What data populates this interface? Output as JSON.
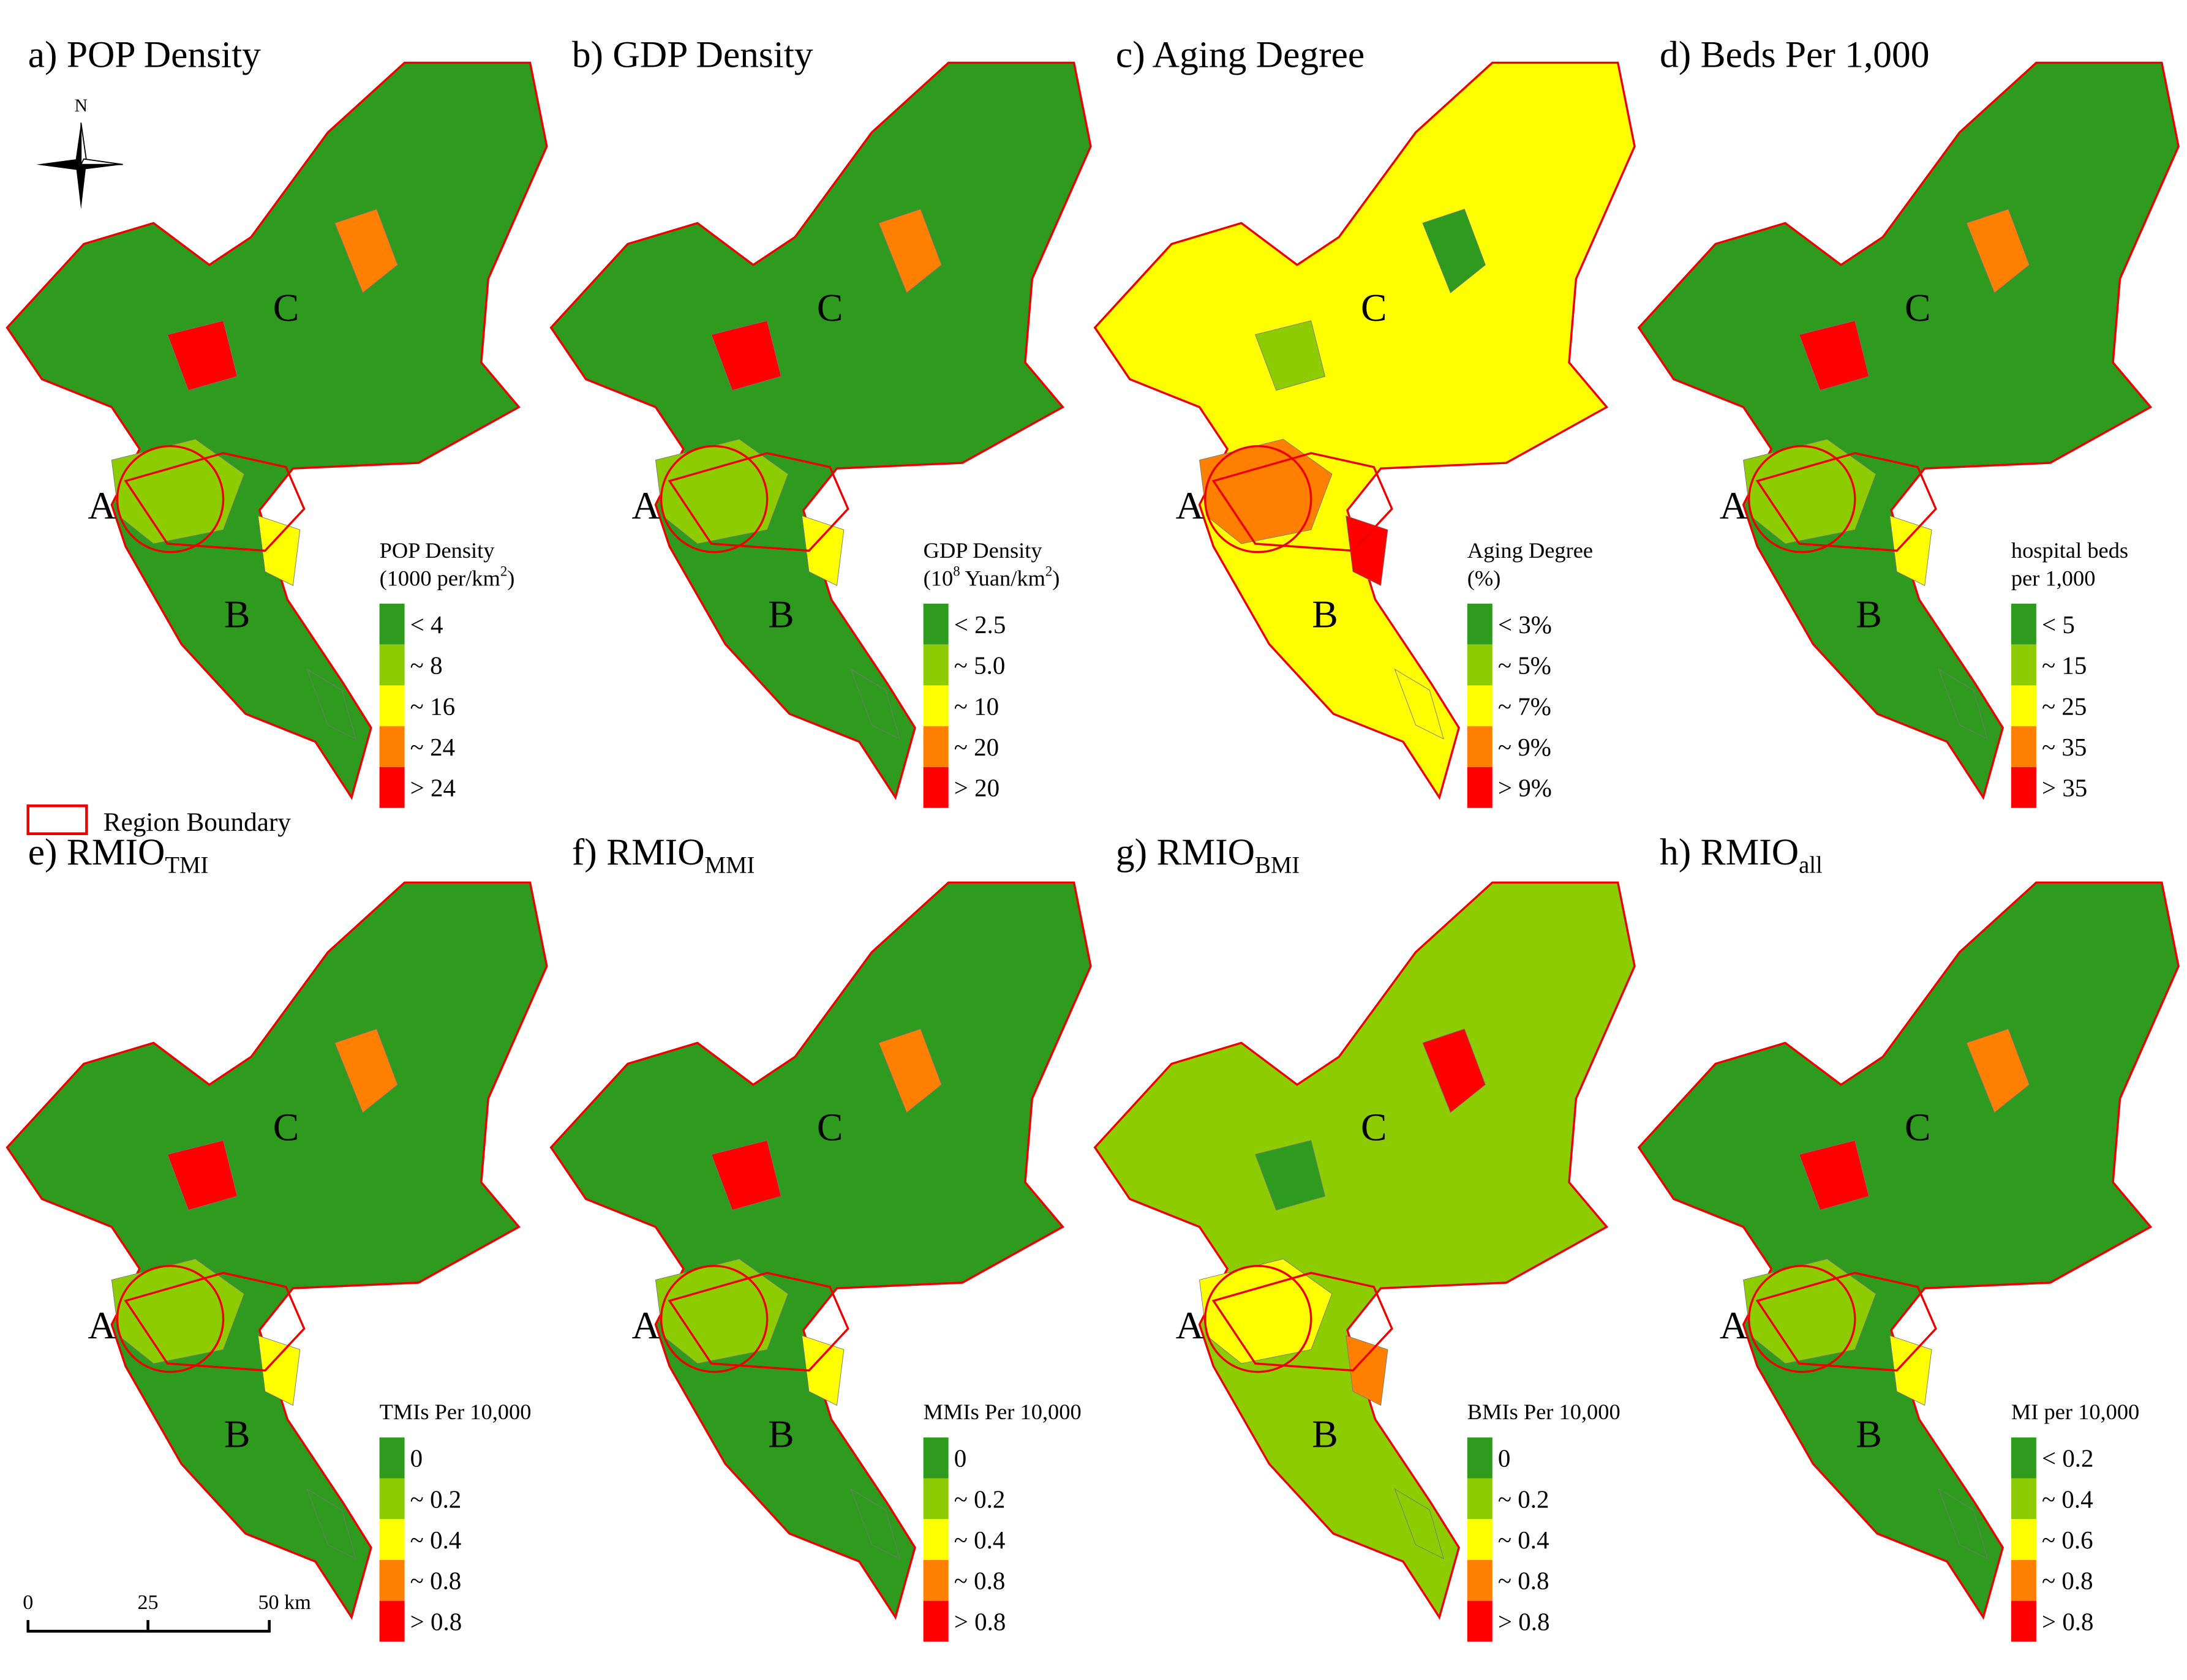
{
  "panels": [
    {
      "title": {
        "main": "a) POP Density"
      },
      "legend_title": [
        [
          {
            "t": "POP Density"
          }
        ],
        [
          {
            "t": "(1000 per/km"
          },
          {
            "t": "2",
            "sup": true
          },
          {
            "t": ")"
          }
        ]
      ],
      "legend": [
        "< 4",
        "~ 8",
        "~ 16",
        "~ 24",
        "> 24"
      ],
      "map_color": 0
    },
    {
      "title": {
        "main": "b) GDP Density"
      },
      "legend_title": [
        [
          {
            "t": "GDP Density"
          }
        ],
        [
          {
            "t": "(10"
          },
          {
            "t": "8",
            "sup": true
          },
          {
            "t": " Yuan/km"
          },
          {
            "t": "2",
            "sup": true
          },
          {
            "t": ")"
          }
        ]
      ],
      "legend": [
        "< 2.5",
        "~ 5.0",
        "~ 10",
        "~ 20",
        "> 20"
      ],
      "map_color": 0
    },
    {
      "title": {
        "main": "c) Aging Degree"
      },
      "legend_title": [
        [
          {
            "t": "Aging Degree"
          }
        ],
        [
          {
            "t": "(%)"
          }
        ]
      ],
      "legend": [
        "< 3%",
        "~ 5%",
        "~ 7%",
        "~ 9%",
        "> 9%"
      ],
      "map_color": 2
    },
    {
      "title": {
        "main": "d) Beds Per 1,000"
      },
      "legend_title": [
        [
          {
            "t": "hospital beds"
          }
        ],
        [
          {
            "t": "per 1,000"
          }
        ]
      ],
      "legend": [
        "< 5",
        "~ 15",
        "~ 25",
        "~ 35",
        "> 35"
      ],
      "map_color": 0
    },
    {
      "title": {
        "main": "e) RMIO",
        "sub": "TMI"
      },
      "legend_title": [
        [
          {
            "t": "TMIs Per 10,000"
          }
        ]
      ],
      "legend": [
        "0",
        "~ 0.2",
        "~ 0.4",
        "~ 0.8",
        "> 0.8"
      ],
      "map_color": 0
    },
    {
      "title": {
        "main": "f) RMIO",
        "sub": "MMI"
      },
      "legend_title": [
        [
          {
            "t": "MMIs Per 10,000"
          }
        ]
      ],
      "legend": [
        "0",
        "~ 0.2",
        "~ 0.4",
        "~ 0.8",
        "> 0.8"
      ],
      "map_color": 0
    },
    {
      "title": {
        "main": "g) RMIO",
        "sub": "BMI"
      },
      "legend_title": [
        [
          {
            "t": "BMIs Per 10,000"
          }
        ]
      ],
      "legend": [
        "0",
        "~ 0.2",
        "~ 0.4",
        "~ 0.8",
        "> 0.8"
      ],
      "map_color": 1
    },
    {
      "title": {
        "main": "h) RMIO",
        "sub": "all"
      },
      "legend_title": [
        [
          {
            "t": "MI per 10,000"
          }
        ]
      ],
      "legend": [
        "< 0.2",
        "~ 0.4",
        "~ 0.6",
        "~ 0.8",
        "> 0.8"
      ],
      "map_color": 0
    }
  ],
  "colors": [
    "#2e9a1e",
    "#8ccc00",
    "#ffff00",
    "#ff8000",
    "#ff0000"
  ],
  "region_labels": [
    "A",
    "B",
    "C"
  ],
  "north": "N",
  "boundary_legend": "Region Boundary",
  "scale_bar": [
    "0",
    "25",
    "50 km"
  ]
}
